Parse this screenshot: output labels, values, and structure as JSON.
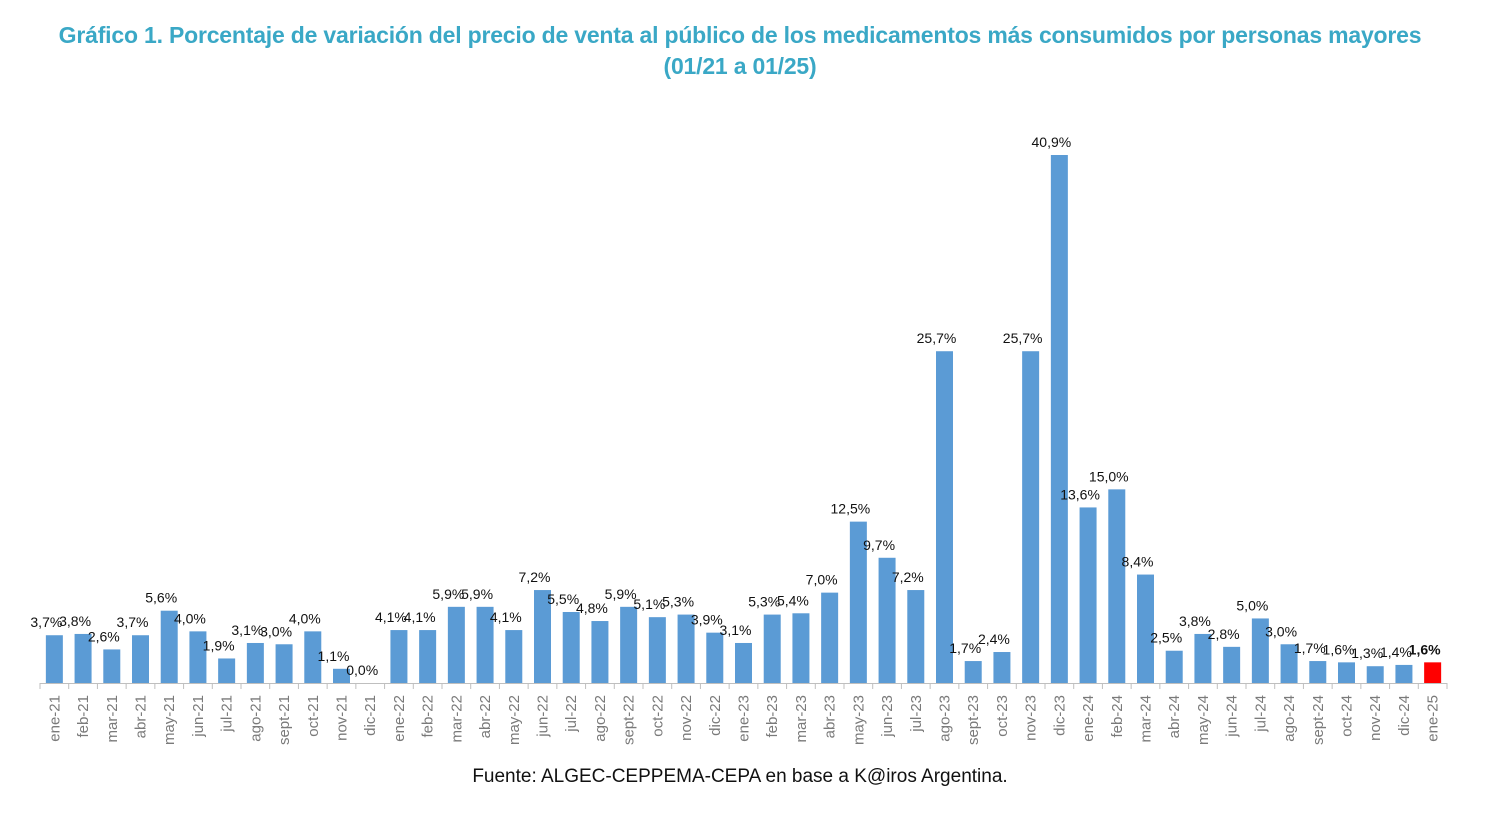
{
  "chart_data": {
    "type": "bar",
    "title_line1": "Gráfico 1. Porcentaje de variación del precio de venta al público de los medicamentos más consumidos por personas mayores",
    "title_line2": "(01/21 a 01/25)",
    "xlabel": "",
    "ylabel": "",
    "ylim": [
      0,
      41
    ],
    "grid": false,
    "legend": "none",
    "source": "Fuente: ALGEC-CEPPEMA-CEPA en base a K@iros Argentina.",
    "colors": {
      "bar": "#5B9BD5",
      "highlight": "#FF0000",
      "title": "#3AA8C6"
    },
    "highlight_index": 48,
    "categories": [
      "ene-21",
      "feb-21",
      "mar-21",
      "abr-21",
      "may-21",
      "jun-21",
      "jul-21",
      "ago-21",
      "sept-21",
      "oct-21",
      "nov-21",
      "dic-21",
      "ene-22",
      "feb-22",
      "mar-22",
      "abr-22",
      "may-22",
      "jun-22",
      "jul-22",
      "ago-22",
      "sept-22",
      "oct-22",
      "nov-22",
      "dic-22",
      "ene-23",
      "feb-23",
      "mar-23",
      "abr-23",
      "may-23",
      "jun-23",
      "jul-23",
      "ago-23",
      "sept-23",
      "oct-23",
      "nov-23",
      "dic-23",
      "ene-24",
      "feb-24",
      "mar-24",
      "abr-24",
      "may-24",
      "jun-24",
      "jul-24",
      "ago-24",
      "sept-24",
      "oct-24",
      "nov-24",
      "dic-24",
      "ene-25"
    ],
    "values": [
      3.7,
      3.8,
      2.6,
      3.7,
      5.6,
      4.0,
      1.9,
      3.1,
      3.0,
      4.0,
      1.1,
      0.0,
      4.1,
      4.1,
      5.9,
      5.9,
      4.1,
      7.2,
      5.5,
      4.8,
      5.9,
      5.1,
      5.3,
      3.9,
      3.1,
      5.3,
      5.4,
      7.0,
      12.5,
      9.7,
      7.2,
      25.7,
      1.7,
      2.4,
      25.7,
      40.9,
      13.6,
      15.0,
      8.4,
      2.5,
      3.8,
      2.8,
      5.0,
      3.0,
      1.7,
      1.6,
      1.3,
      1.4,
      1.6
    ],
    "labels": [
      "3,7%",
      "3,8%",
      "2,6%",
      "3,7%",
      "5,6%",
      "4,0%",
      "1,9%",
      "3,1%",
      "3,0%",
      "4,0%",
      "1,1%",
      "0,0%",
      "4,1%",
      "4,1%",
      "5,9%",
      "5,9%",
      "4,1%",
      "7,2%",
      "5,5%",
      "4,8%",
      "5,9%",
      "5,1%",
      "5,3%",
      "3,9%",
      "3,1%",
      "5,3%",
      "5,4%",
      "7,0%",
      "12,5%",
      "9,7%",
      "7,2%",
      "25,7%",
      "1,7%",
      "2,4%",
      "25,7%",
      "40,9%",
      "13,6%",
      "15,0%",
      "8,4%",
      "2,5%",
      "3,8%",
      "2,8%",
      "5,0%",
      "3,0%",
      "1,7%",
      "1,6%",
      "1,3%",
      "1,4%",
      "1,6%"
    ]
  }
}
